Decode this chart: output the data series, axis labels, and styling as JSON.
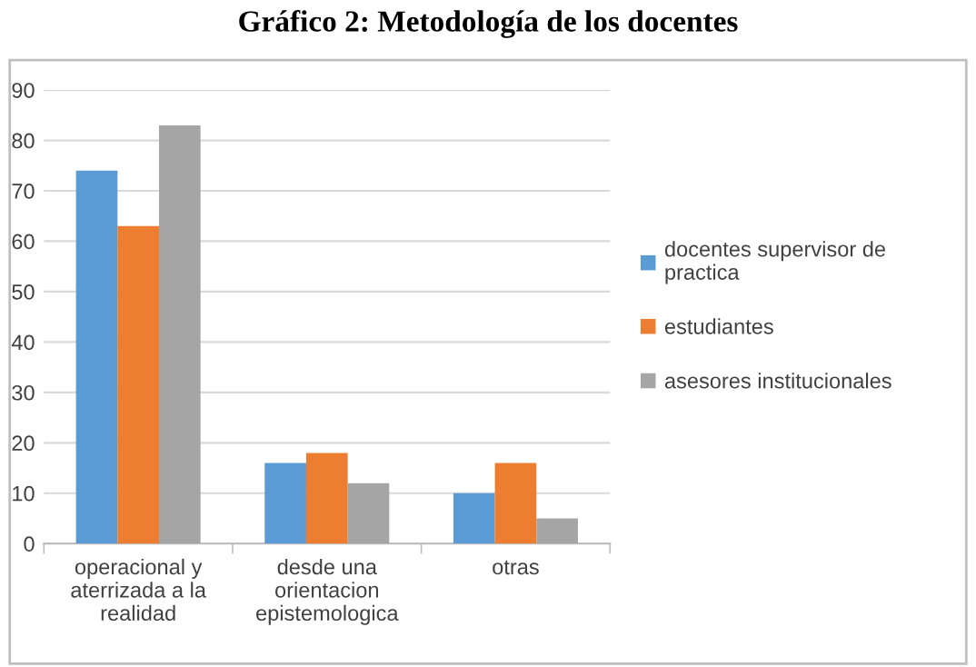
{
  "chart_data": {
    "type": "bar",
    "title": "Gráfico 2: Metodología de los docentes",
    "categories": [
      "operacional y\naterrizada a la\nrealidad",
      "desde una\norientacion\nepistemologica",
      "otras"
    ],
    "series": [
      {
        "name": "docentes supervisor de\npractica",
        "color": "#5b9bd5",
        "values": [
          74,
          16,
          10
        ]
      },
      {
        "name": "estudiantes",
        "color": "#ed7d31",
        "values": [
          63,
          18,
          16
        ]
      },
      {
        "name": "asesores institucionales",
        "color": "#a5a5a5",
        "values": [
          83,
          12,
          5
        ]
      }
    ],
    "ylim": [
      0,
      90
    ],
    "yticks": [
      0,
      10,
      20,
      30,
      40,
      50,
      60,
      70,
      80,
      90
    ],
    "grid": "y",
    "legend": "right"
  }
}
